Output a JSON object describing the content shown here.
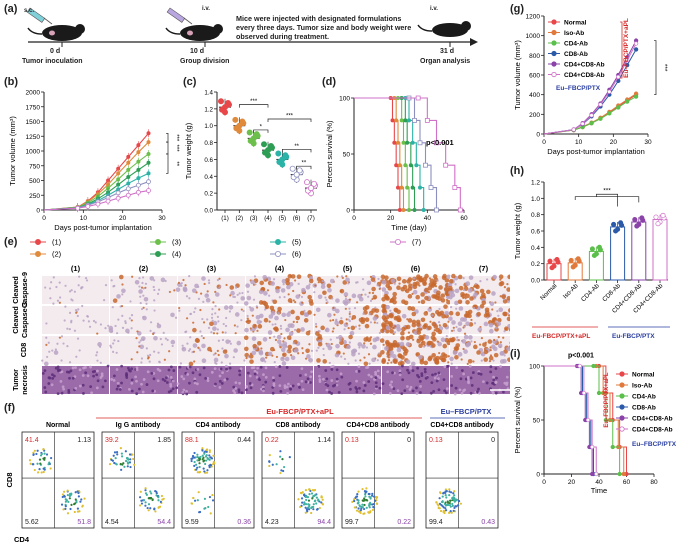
{
  "panels": {
    "a": "(a)",
    "b": "(b)",
    "c": "(c)",
    "d": "(d)",
    "e": "(e)",
    "f": "(f)",
    "g": "(g)",
    "h": "(h)",
    "i": "(i)"
  },
  "timeline": {
    "sc": "s.c.",
    "iv": "i.v.",
    "d0": "0 d",
    "d10": "10 d",
    "d31": "31 d",
    "ev0": "Tumor inoculation",
    "ev10": "Group division",
    "ev31": "Organ analysis",
    "desc1": "Mice were injected with designated formulations",
    "desc2": "every three days. Tumor size and body weight were",
    "desc3": "observed during treatment."
  },
  "colors": {
    "g1": "#e8474a",
    "g2": "#e08a3c",
    "g3": "#6cbf4b",
    "g4": "#2e9e55",
    "g5": "#2ab3a6",
    "g6": "#8d8fc0",
    "g7": "#d070c8",
    "normal": "#e8474a",
    "iso": "#e07a3c",
    "cd4": "#5bbf4b",
    "cd8": "#2b5aa8",
    "cd48": "#8a43a8",
    "cd48eu": "#d070c8",
    "red_text": "#d62828",
    "blue_text": "#2b3fa0"
  },
  "panel_b": {
    "ylabel": "Tumor volume (mm³)",
    "xlabel": "Days post-tumor implantation",
    "yticks": [
      "0",
      "250",
      "500",
      "750",
      "1000",
      "1250",
      "1500",
      "1750",
      "2000"
    ],
    "xticks": [
      "0",
      "10",
      "20",
      "30"
    ],
    "sig": [
      "***",
      "***",
      "**"
    ]
  },
  "panel_c": {
    "ylabel": "Tumor weight (g)",
    "yticks": [
      "0.0",
      "0.2",
      "0.4",
      "0.6",
      "0.8",
      "1.0",
      "1.2",
      "1.4"
    ],
    "xticks": [
      "(1)",
      "(2)",
      "(3)",
      "(4)",
      "(5)",
      "(6)",
      "(7)"
    ],
    "sig": [
      "***",
      "*",
      "***",
      "**",
      "**"
    ]
  },
  "panel_d": {
    "ylabel": "Percent survival (%)",
    "xlabel": "Time (day)",
    "yticks": [
      "0",
      "50",
      "100"
    ],
    "xticks": [
      "0",
      "20",
      "40",
      "60"
    ],
    "pval": "p<0.001"
  },
  "legend_main": [
    "(1)",
    "(2)",
    "(3)",
    "(4)",
    "(5)",
    "(6)",
    "(7)"
  ],
  "panel_e": {
    "cols": [
      "(1)",
      "(2)",
      "(3)",
      "(4)",
      "(5)",
      "(6)",
      "(7)"
    ],
    "rows": [
      "Cleaved Caspase-9",
      "Cleaved Caspase-3",
      "CD8",
      "Tumor necrosis"
    ],
    "row_label_parts": {
      "r1a": "Cleaved",
      "r1b": "Caspase-9",
      "r2a": "Cleaved",
      "r2b": "Caspase-3",
      "r3": "CD8",
      "r4a": "Tumor",
      "r4b": "necrosis"
    }
  },
  "panel_f": {
    "group_red": "Eu-FBCP/PTX+aPL",
    "group_blue": "Eu–FBCP/PTX",
    "titles": [
      "Normal",
      "Ig G antibody",
      "CD4 antibody",
      "CD8 antibody",
      "CD4+CD8 antibody",
      "CD4+CD8 antibody"
    ],
    "ylabel": "CD8",
    "xlabel": "CD4",
    "quadrants": [
      {
        "ul": "41.4",
        "ur": "1.13",
        "ll": "5.62",
        "lr": "51.8"
      },
      {
        "ul": "39.2",
        "ur": "1.85",
        "ll": "4.54",
        "lr": "54.4"
      },
      {
        "ul": "88.1",
        "ur": "0.44",
        "ll": "9.59",
        "lr": "0.36"
      },
      {
        "ul": "0.22",
        "ur": "1.14",
        "ll": "4.23",
        "lr": "94.4"
      },
      {
        "ul": "0.13",
        "ur": "0",
        "ll": "99.7",
        "lr": "0.22"
      },
      {
        "ul": "0.13",
        "ur": "0",
        "ll": "99.4",
        "lr": "0.43"
      }
    ]
  },
  "panel_g": {
    "ylabel": "Tumor volume (mm³)",
    "xlabel": "Days post-tumor implantation",
    "yticks": [
      "0",
      "200",
      "400",
      "600",
      "800",
      "1000",
      "1200"
    ],
    "xticks": [
      "0",
      "10",
      "20",
      "30"
    ],
    "legend": [
      "Normal",
      "Iso-Ab",
      "CD4-Ab",
      "CD8-Ab",
      "CD4+CD8-Ab",
      "CD4+CD8-Ab"
    ],
    "legend_sub": "Eu–FBCP/PTX",
    "side_label": "Eu–FBCP/PTX+aPL",
    "sig": "***"
  },
  "panel_h": {
    "ylabel": "Tumor weight (g)",
    "yticks": [
      "0.0",
      "0.2",
      "0.4",
      "0.6",
      "0.8",
      "1.0",
      "1.2"
    ],
    "xticks": [
      "Normal",
      "Iso-Ab",
      "CD4-Ab",
      "CD8-Ab",
      "CD4+CD8-Ab",
      "CD4+CD8-Ab"
    ],
    "group_red": "Eu-FBCP/PTX+aPL",
    "group_blue": "Eu-FBCP/PTX",
    "sig": "***"
  },
  "panel_i": {
    "ylabel": "Percent survival (%)",
    "xlabel": "Time",
    "yticks": [
      "0",
      "50",
      "100"
    ],
    "xticks": [
      "0",
      "20",
      "40",
      "60",
      "80"
    ],
    "pval": "p<0.001",
    "legend": [
      "Normal",
      "Iso-Ab",
      "CD4-Ab",
      "CD8-Ab",
      "CD4+CD8-Ab",
      "CD4+CD8-Ab"
    ],
    "legend_sub": "Eu–FBCP/PTX",
    "side_label": "Eu–FBCP/PTX+aPL"
  },
  "chart_data": [
    {
      "type": "line",
      "xlabel": "Days post-tumor implantation",
      "ylabel": "Tumor volume (mm³)",
      "x": [
        0,
        10,
        13,
        16,
        19,
        22,
        25,
        28,
        31
      ],
      "ylim": [
        0,
        2000
      ],
      "series": [
        {
          "name": "(1)",
          "values": [
            0,
            50,
            150,
            300,
            500,
            700,
            900,
            1100,
            1300
          ]
        },
        {
          "name": "(2)",
          "values": [
            0,
            50,
            140,
            270,
            430,
            620,
            800,
            980,
            1150
          ]
        },
        {
          "name": "(3)",
          "values": [
            0,
            45,
            120,
            230,
            370,
            520,
            680,
            820,
            950
          ]
        },
        {
          "name": "(4)",
          "values": [
            0,
            40,
            100,
            190,
            300,
            430,
            560,
            680,
            800
          ]
        },
        {
          "name": "(5)",
          "values": [
            0,
            40,
            90,
            160,
            250,
            350,
            450,
            540,
            620
          ]
        },
        {
          "name": "(6)",
          "values": [
            0,
            35,
            80,
            140,
            210,
            290,
            360,
            420,
            480
          ]
        },
        {
          "name": "(7)",
          "values": [
            0,
            30,
            60,
            100,
            150,
            200,
            250,
            300,
            330
          ]
        }
      ]
    },
    {
      "type": "scatter",
      "ylabel": "Tumor weight (g)",
      "categories": [
        "(1)",
        "(2)",
        "(3)",
        "(4)",
        "(5)",
        "(6)",
        "(7)"
      ],
      "ylim": [
        0,
        1.4
      ],
      "values": [
        1.22,
        1.0,
        0.85,
        0.71,
        0.6,
        0.42,
        0.26
      ]
    },
    {
      "type": "line",
      "xlabel": "Time (day)",
      "ylabel": "Percent survival (%)",
      "xlim": [
        0,
        60
      ],
      "ylim": [
        0,
        100
      ],
      "series": [
        {
          "name": "(1)",
          "x": [
            0,
            20,
            21,
            22,
            23,
            24,
            25
          ],
          "values": [
            100,
            100,
            80,
            60,
            40,
            20,
            0
          ]
        },
        {
          "name": "(2)",
          "x": [
            0,
            22,
            23,
            24,
            25,
            26,
            27
          ],
          "values": [
            100,
            100,
            80,
            60,
            40,
            20,
            0
          ]
        },
        {
          "name": "(3)",
          "x": [
            0,
            24,
            26,
            27,
            28,
            29,
            30
          ],
          "values": [
            100,
            100,
            80,
            60,
            40,
            20,
            0
          ]
        },
        {
          "name": "(4)",
          "x": [
            0,
            26,
            28,
            29,
            31,
            32,
            33
          ],
          "values": [
            100,
            100,
            80,
            60,
            40,
            20,
            0
          ]
        },
        {
          "name": "(5)",
          "x": [
            0,
            28,
            30,
            32,
            34,
            36,
            38
          ],
          "values": [
            100,
            100,
            80,
            60,
            40,
            20,
            0
          ]
        },
        {
          "name": "(6)",
          "x": [
            0,
            30,
            33,
            36,
            39,
            42,
            45
          ],
          "values": [
            100,
            100,
            80,
            60,
            40,
            20,
            0
          ]
        },
        {
          "name": "(7)",
          "x": [
            0,
            35,
            40,
            45,
            50,
            55,
            58
          ],
          "values": [
            100,
            100,
            80,
            60,
            40,
            20,
            0
          ]
        }
      ]
    },
    {
      "type": "line",
      "xlabel": "Days post-tumor implantation",
      "ylabel": "Tumor volume (mm³)",
      "x": [
        0,
        10,
        13,
        16,
        19,
        22,
        25,
        28,
        31
      ],
      "ylim": [
        0,
        1200
      ],
      "series": [
        {
          "name": "Normal",
          "values": [
            0,
            40,
            70,
            110,
            160,
            220,
            280,
            340,
            400
          ]
        },
        {
          "name": "Iso-Ab",
          "values": [
            0,
            40,
            75,
            115,
            165,
            225,
            290,
            350,
            410
          ]
        },
        {
          "name": "CD4-Ab",
          "values": [
            0,
            40,
            70,
            110,
            155,
            210,
            270,
            330,
            380
          ]
        },
        {
          "name": "CD8-Ab",
          "values": [
            0,
            45,
            100,
            180,
            280,
            400,
            540,
            700,
            860
          ]
        },
        {
          "name": "CD4+CD8-Ab",
          "values": [
            0,
            45,
            110,
            200,
            310,
            450,
            600,
            780,
            950
          ]
        },
        {
          "name": "CD4+CD8-Ab",
          "values": [
            0,
            45,
            105,
            190,
            300,
            430,
            580,
            750,
            920
          ]
        }
      ]
    },
    {
      "type": "bar",
      "ylabel": "Tumor weight (g)",
      "categories": [
        "Normal",
        "Iso-Ab",
        "CD4-Ab",
        "CD8-Ab",
        "CD4+CD8-Ab",
        "CD4+CD8-Ab"
      ],
      "ylim": [
        0,
        1.2
      ],
      "values": [
        0.2,
        0.21,
        0.35,
        0.65,
        0.71,
        0.74
      ]
    },
    {
      "type": "line",
      "xlabel": "Time",
      "ylabel": "Percent survival (%)",
      "xlim": [
        0,
        80
      ],
      "ylim": [
        0,
        100
      ],
      "series": [
        {
          "name": "Normal",
          "x": [
            0,
            40,
            45,
            50,
            55,
            60
          ],
          "values": [
            100,
            100,
            75,
            50,
            25,
            0
          ]
        },
        {
          "name": "Iso-Ab",
          "x": [
            0,
            38,
            43,
            48,
            54,
            58
          ],
          "values": [
            100,
            100,
            75,
            50,
            25,
            0
          ]
        },
        {
          "name": "CD4-Ab",
          "x": [
            0,
            36,
            40,
            45,
            50,
            55
          ],
          "values": [
            100,
            100,
            75,
            50,
            25,
            0
          ]
        },
        {
          "name": "CD8-Ab",
          "x": [
            0,
            25,
            28,
            31,
            34,
            36
          ],
          "values": [
            100,
            100,
            75,
            50,
            25,
            0
          ]
        },
        {
          "name": "CD4+CD8-Ab",
          "x": [
            0,
            24,
            27,
            30,
            33,
            35
          ],
          "values": [
            100,
            100,
            75,
            50,
            25,
            0
          ]
        },
        {
          "name": "CD4+CD8-Ab",
          "x": [
            0,
            26,
            29,
            32,
            35,
            38
          ],
          "values": [
            100,
            100,
            75,
            50,
            25,
            0
          ]
        }
      ]
    }
  ]
}
